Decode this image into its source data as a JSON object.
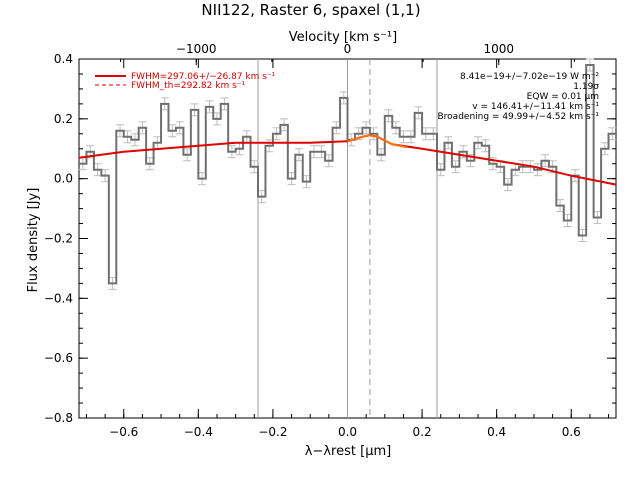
{
  "chart_data": {
    "type": "line",
    "title": "NII122, Raster 6, spaxel (1,1)",
    "xlabel": "λ−λrest [μm]",
    "ylabel": "Flux density [Jy]",
    "top_xlabel": "Velocity [km s⁻¹]",
    "xlim": [
      -0.72,
      0.72
    ],
    "ylim": [
      -0.8,
      0.4
    ],
    "top_xlim": [
      -1775,
      1775
    ],
    "x_ticks": [
      "−0.6",
      "−0.4",
      "−0.2",
      "0.0",
      "0.2",
      "0.4",
      "0.6"
    ],
    "x_tick_values": [
      -0.6,
      -0.4,
      -0.2,
      0.0,
      0.2,
      0.4,
      0.6
    ],
    "y_ticks": [
      "0.4",
      "0.2",
      "0.0",
      "−0.2",
      "−0.4",
      "−0.6",
      "−0.8"
    ],
    "y_tick_values": [
      0.4,
      0.2,
      0.0,
      -0.2,
      -0.4,
      -0.6,
      -0.8
    ],
    "top_ticks": [
      "−1000",
      "0",
      "1000"
    ],
    "top_tick_values": [
      -1000,
      0,
      1000
    ],
    "vlines_solid": [
      -0.24,
      0.0,
      0.24
    ],
    "vline_dashed": 0.06,
    "grid": false,
    "legend_position": "top-left",
    "legend": [
      {
        "label": "FWHM=297.06+/−26.87 km s⁻¹",
        "style": "solid",
        "color": "#e00000"
      },
      {
        "label": "FWHM_th=292.82 km s⁻¹",
        "style": "dashed",
        "color": "#e00000"
      }
    ],
    "annotations": [
      "8.41e−19+/−7.02e−19 W m⁻²",
      "1.19σ",
      "EQW = 0.01 μm",
      "v = 146.41+/−11.41 km s⁻¹",
      "Broadening = 49.99+/−4.52 km s⁻¹"
    ],
    "series": [
      {
        "kind": "step",
        "color": "#707070",
        "error": 0.02,
        "x": [
          -0.71,
          -0.69,
          -0.67,
          -0.65,
          -0.63,
          -0.61,
          -0.59,
          -0.57,
          -0.55,
          -0.53,
          -0.51,
          -0.49,
          -0.47,
          -0.45,
          -0.43,
          -0.41,
          -0.39,
          -0.37,
          -0.35,
          -0.33,
          -0.31,
          -0.29,
          -0.27,
          -0.25,
          -0.23,
          -0.21,
          -0.19,
          -0.17,
          -0.15,
          -0.13,
          -0.11,
          -0.09,
          -0.07,
          -0.05,
          -0.03,
          -0.01,
          0.01,
          0.03,
          0.05,
          0.07,
          0.09,
          0.11,
          0.13,
          0.15,
          0.17,
          0.19,
          0.21,
          0.23,
          0.25,
          0.27,
          0.29,
          0.31,
          0.33,
          0.35,
          0.37,
          0.39,
          0.41,
          0.43,
          0.45,
          0.47,
          0.49,
          0.51,
          0.53,
          0.55,
          0.57,
          0.59,
          0.61,
          0.63,
          0.65,
          0.67,
          0.69,
          0.71
        ],
        "y": [
          0.05,
          0.09,
          0.03,
          0.01,
          -0.35,
          0.16,
          0.14,
          0.13,
          0.17,
          0.05,
          0.12,
          0.25,
          0.16,
          0.17,
          0.08,
          0.23,
          0.0,
          0.24,
          0.2,
          0.25,
          0.09,
          0.1,
          0.14,
          0.04,
          -0.06,
          0.11,
          0.15,
          0.18,
          0.0,
          0.08,
          -0.01,
          0.09,
          0.09,
          0.06,
          0.17,
          0.27,
          0.13,
          0.15,
          0.17,
          0.15,
          0.08,
          0.21,
          0.17,
          0.14,
          0.14,
          0.22,
          0.15,
          0.15,
          0.03,
          0.12,
          0.04,
          0.09,
          0.06,
          0.12,
          0.11,
          0.05,
          0.04,
          -0.02,
          0.03,
          0.04,
          0.04,
          0.03,
          0.06,
          0.04,
          -0.09,
          -0.14,
          0.01,
          -0.19,
          0.38,
          -0.13,
          0.1,
          0.15
        ]
      },
      {
        "kind": "line",
        "name": "FWHM=297.06+/−26.87 km s⁻¹",
        "color": "#e00000",
        "x": [
          -0.72,
          -0.6,
          -0.5,
          -0.4,
          -0.3,
          -0.2,
          -0.1,
          0.0,
          0.04,
          0.06,
          0.08,
          0.12,
          0.2,
          0.3,
          0.4,
          0.5,
          0.6,
          0.72
        ],
        "y": [
          0.07,
          0.09,
          0.1,
          0.11,
          0.12,
          0.12,
          0.12,
          0.125,
          0.14,
          0.145,
          0.14,
          0.115,
          0.1,
          0.08,
          0.06,
          0.04,
          0.01,
          -0.02
        ]
      },
      {
        "kind": "line",
        "name": "FWHM_th=292.82 km s⁻¹",
        "color": "#ff7000",
        "x": [
          0.0,
          0.04,
          0.06,
          0.08,
          0.12,
          0.16
        ],
        "y": [
          0.125,
          0.14,
          0.145,
          0.14,
          0.115,
          0.105
        ]
      }
    ]
  }
}
